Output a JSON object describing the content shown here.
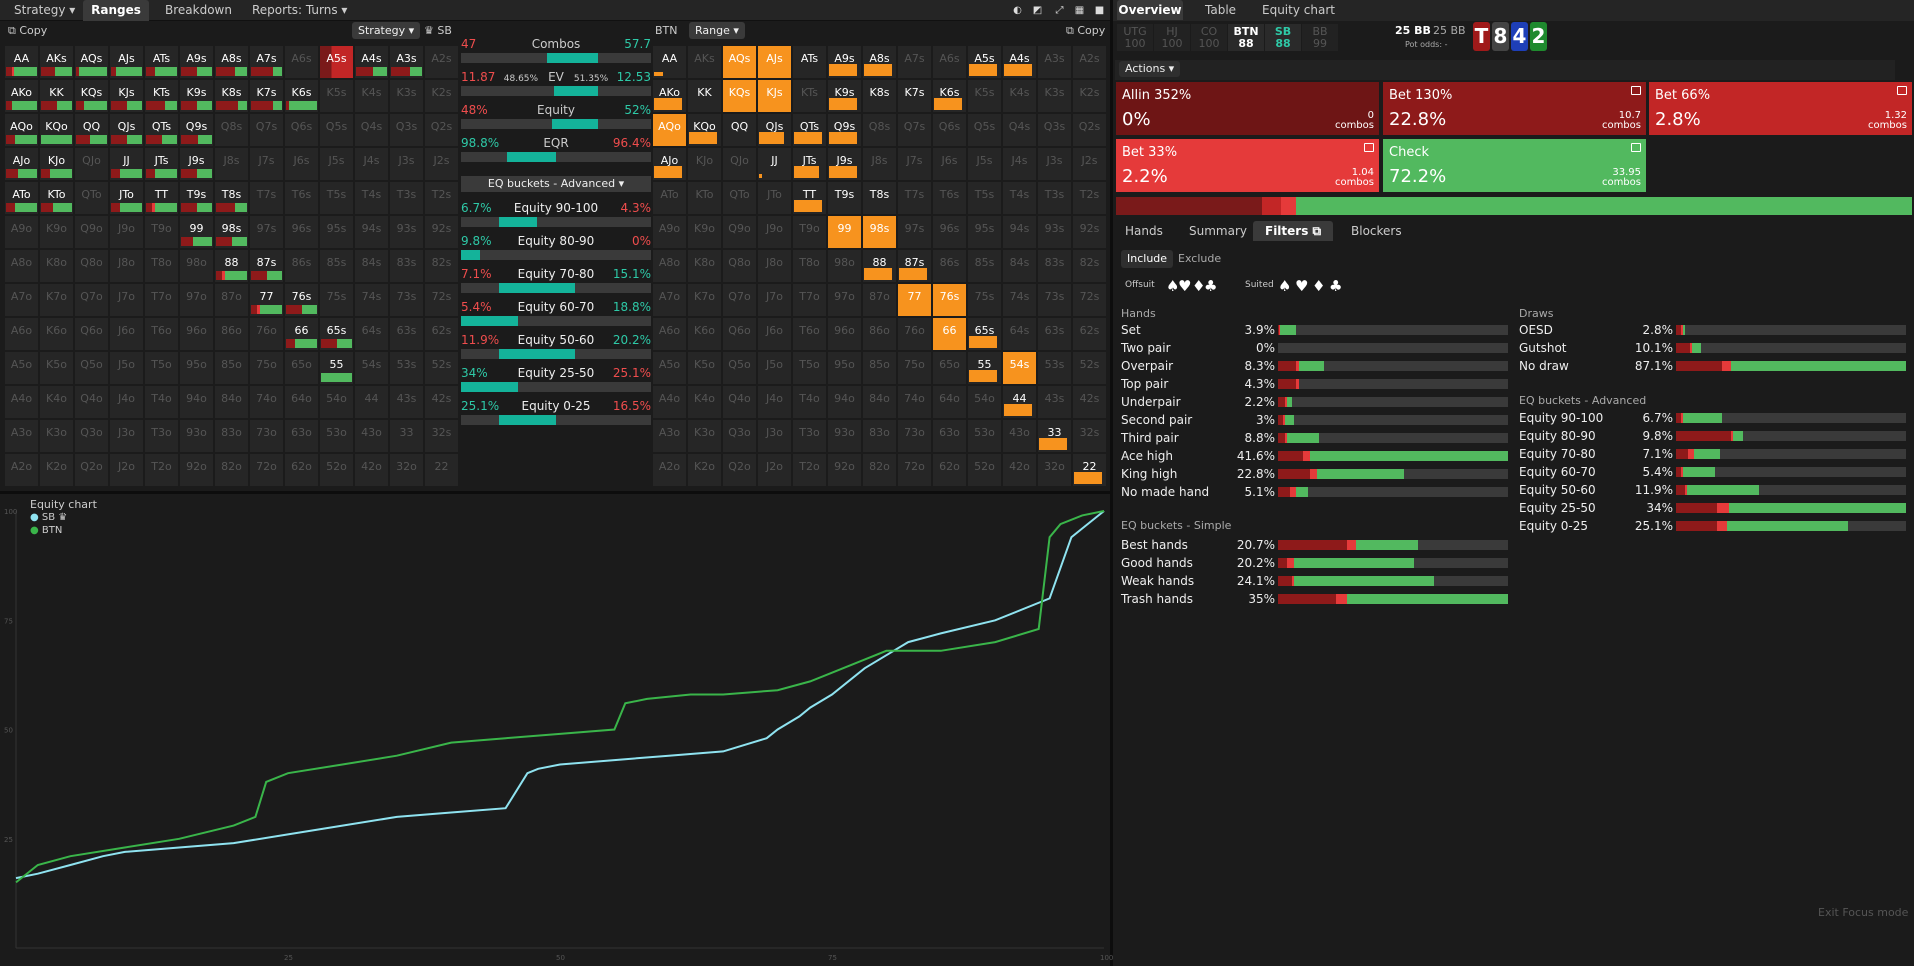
{
  "nav": {
    "tabs": [
      {
        "label": "Strategy ▾",
        "active": false
      },
      {
        "label": "Ranges",
        "active": true
      },
      {
        "label": "Breakdown",
        "active": false
      },
      {
        "label": "Reports: Turns ▾",
        "active": false
      }
    ]
  },
  "left": {
    "copy": "Copy",
    "strategy_dd": "Strategy ▾",
    "player": "♛ SB",
    "combos": {
      "label": "Combos",
      "left": "47",
      "right": "57.7",
      "fill": 0.45
    },
    "ev": {
      "label": "EV",
      "left": "11.87",
      "lp": "48.65%",
      "rp": "51.35%",
      "right": "12.53",
      "fill": 0.51
    },
    "equity": {
      "label": "Equity",
      "left": "48%",
      "right": "52%",
      "fill": 0.52
    },
    "eqr": {
      "label": "EQR",
      "left": "98.8%",
      "right": "96.4%",
      "fill": 0.5
    },
    "eq_dd": "EQ buckets - Advanced ▾",
    "buckets": [
      {
        "label": "Equity 90-100",
        "l": "6.7%",
        "r": "4.3%",
        "lc": "teal",
        "rc": "red",
        "fill": 0.2
      },
      {
        "label": "Equity 80-90",
        "l": "9.8%",
        "r": "0%",
        "lc": "teal",
        "rc": "red",
        "fill": 0.1
      },
      {
        "label": "Equity 70-80",
        "l": "7.1%",
        "r": "15.1%",
        "lc": "red",
        "rc": "teal",
        "fill": 0.4
      },
      {
        "label": "Equity 60-70",
        "l": "5.4%",
        "r": "18.8%",
        "lc": "red",
        "rc": "teal",
        "fill": 0.3
      },
      {
        "label": "Equity 50-60",
        "l": "11.9%",
        "r": "20.2%",
        "lc": "red",
        "rc": "teal",
        "fill": 0.4
      },
      {
        "label": "Equity 25-50",
        "l": "34%",
        "r": "25.1%",
        "lc": "teal",
        "rc": "red",
        "fill": 0.3
      },
      {
        "label": "Equity 0-25",
        "l": "25.1%",
        "r": "16.5%",
        "lc": "teal",
        "rc": "red",
        "fill": 0.3
      }
    ]
  },
  "right_range": {
    "player": "BTN",
    "range_dd": "Range ▾",
    "copy": "Copy"
  },
  "hands": [
    "AA",
    "AKs",
    "AQs",
    "AJs",
    "ATs",
    "A9s",
    "A8s",
    "A7s",
    "A6s",
    "A5s",
    "A4s",
    "A3s",
    "A2s",
    "AKo",
    "KK",
    "KQs",
    "KJs",
    "KTs",
    "K9s",
    "K8s",
    "K7s",
    "K6s",
    "K5s",
    "K4s",
    "K3s",
    "K2s",
    "AQo",
    "KQo",
    "QQ",
    "QJs",
    "QTs",
    "Q9s",
    "Q8s",
    "Q7s",
    "Q6s",
    "Q5s",
    "Q4s",
    "Q3s",
    "Q2s",
    "AJo",
    "KJo",
    "QJo",
    "JJ",
    "JTs",
    "J9s",
    "J8s",
    "J7s",
    "J6s",
    "J5s",
    "J4s",
    "J3s",
    "J2s",
    "ATo",
    "KTo",
    "QTo",
    "JTo",
    "TT",
    "T9s",
    "T8s",
    "T7s",
    "T6s",
    "T5s",
    "T4s",
    "T3s",
    "T2s",
    "A9o",
    "K9o",
    "Q9o",
    "J9o",
    "T9o",
    "99",
    "98s",
    "97s",
    "96s",
    "95s",
    "94s",
    "93s",
    "92s",
    "A8o",
    "K8o",
    "Q8o",
    "J8o",
    "T8o",
    "98o",
    "88",
    "87s",
    "86s",
    "85s",
    "84s",
    "83s",
    "82s",
    "A7o",
    "K7o",
    "Q7o",
    "J7o",
    "T7o",
    "97o",
    "87o",
    "77",
    "76s",
    "75s",
    "74s",
    "73s",
    "72s",
    "A6o",
    "K6o",
    "Q6o",
    "J6o",
    "T6o",
    "96o",
    "86o",
    "76o",
    "66",
    "65s",
    "64s",
    "63s",
    "62s",
    "A5o",
    "K5o",
    "Q5o",
    "J5o",
    "T5o",
    "95o",
    "85o",
    "75o",
    "65o",
    "55",
    "54s",
    "53s",
    "52s",
    "A4o",
    "K4o",
    "Q4o",
    "J4o",
    "T4o",
    "94o",
    "84o",
    "74o",
    "64o",
    "54o",
    "44",
    "43s",
    "42s",
    "A3o",
    "K3o",
    "Q3o",
    "J3o",
    "T3o",
    "93o",
    "83o",
    "73o",
    "63o",
    "53o",
    "43o",
    "33",
    "32s",
    "A2o",
    "K2o",
    "Q2o",
    "J2o",
    "T2o",
    "92o",
    "82o",
    "72o",
    "62o",
    "52o",
    "42o",
    "32o",
    "22"
  ],
  "chart": {
    "title": "Equity chart",
    "legend": [
      {
        "name": "SB ♛",
        "color": "#8fe3f0"
      },
      {
        "name": "BTN",
        "color": "#3ab54a"
      }
    ],
    "yticks": [
      "100",
      "75",
      "50",
      "25"
    ],
    "xticks": [
      "25",
      "50",
      "75",
      "100"
    ],
    "chart_data": {
      "type": "line",
      "xlim": [
        0,
        100
      ],
      "ylim": [
        0,
        100
      ],
      "series": [
        {
          "name": "SB",
          "x": [
            0,
            2,
            5,
            8,
            10,
            15,
            20,
            25,
            30,
            35,
            40,
            45,
            47,
            48,
            50,
            55,
            60,
            65,
            69,
            70,
            72,
            73,
            75,
            78,
            80,
            82,
            85,
            90,
            95,
            97,
            98,
            100
          ],
          "y": [
            16,
            17,
            19,
            21,
            22,
            23,
            24,
            26,
            28,
            30,
            31,
            32,
            40,
            41,
            42,
            43,
            44,
            45,
            48,
            50,
            53,
            55,
            58,
            64,
            67,
            70,
            72,
            75,
            80,
            94,
            96,
            100
          ]
        },
        {
          "name": "BTN",
          "x": [
            0,
            2,
            5,
            10,
            15,
            20,
            22,
            23,
            25,
            30,
            35,
            40,
            45,
            50,
            55,
            56,
            58,
            62,
            65,
            70,
            73,
            75,
            78,
            80,
            85,
            90,
            94,
            95,
            96,
            98,
            100
          ],
          "y": [
            15,
            19,
            21,
            23,
            25,
            28,
            30,
            38,
            40,
            42,
            44,
            47,
            48,
            49,
            50,
            56,
            57,
            58,
            58,
            59,
            61,
            63,
            66,
            68,
            68,
            70,
            73,
            94,
            97,
            99,
            100
          ]
        }
      ]
    }
  },
  "overview": {
    "tabs": [
      "Overview",
      "Table",
      "Equity chart"
    ],
    "positions": [
      {
        "n": "UTG",
        "v": "100"
      },
      {
        "n": "HJ",
        "v": "100"
      },
      {
        "n": "CO",
        "v": "100"
      },
      {
        "n": "BTN",
        "v": "88"
      },
      {
        "n": "SB",
        "v": "88"
      },
      {
        "n": "BB",
        "v": "99"
      }
    ],
    "pot": {
      "a": "25 BB",
      "b": "25 BB",
      "odds": "Pot odds: -"
    },
    "cards": [
      {
        "r": "T",
        "c": "#a01a1a"
      },
      {
        "r": "8",
        "c": "#444"
      },
      {
        "r": "4",
        "c": "#1e3fb8"
      },
      {
        "r": "2",
        "c": "#1f8a2e"
      }
    ],
    "actions_dd": "Actions ▾",
    "actions": [
      {
        "name": "Allin 352%",
        "pct": "0%",
        "combos": "0",
        "color": "#6e1515"
      },
      {
        "name": "Bet 130%",
        "pct": "22.8%",
        "combos": "10.7",
        "color": "#8e1a1a"
      },
      {
        "name": "Bet 66%",
        "pct": "2.8%",
        "combos": "1.32",
        "color": "#c22626"
      },
      {
        "name": "Bet 33%",
        "pct": "2.2%",
        "combos": "1.04",
        "color": "#e53a3a"
      },
      {
        "name": "Check",
        "pct": "72.2%",
        "combos": "33.95",
        "color": "#52b95f"
      }
    ],
    "combos_word": "combos",
    "subtabs": [
      "Hands",
      "Summary",
      "Filters",
      "Blockers"
    ],
    "incl": [
      "Include",
      "Exclude"
    ],
    "offsuit": "Offsuit",
    "suited": "Suited",
    "hands_title": "Hands",
    "hands_rows": [
      {
        "n": "Set",
        "v": "3.9%",
        "f": [
          0.005,
          0.005,
          0.07
        ]
      },
      {
        "n": "Two pair",
        "v": "0%",
        "f": [
          0,
          0,
          0
        ]
      },
      {
        "n": "Overpair",
        "v": "8.3%",
        "f": [
          0.08,
          0.01,
          0.11
        ]
      },
      {
        "n": "Top pair",
        "v": "4.3%",
        "f": [
          0.08,
          0.01,
          0
        ]
      },
      {
        "n": "Underpair",
        "v": "2.2%",
        "f": [
          0.03,
          0.01,
          0.02
        ]
      },
      {
        "n": "Second pair",
        "v": "3%",
        "f": [
          0.02,
          0.01,
          0.04
        ]
      },
      {
        "n": "Third pair",
        "v": "8.8%",
        "f": [
          0.03,
          0.01,
          0.14
        ]
      },
      {
        "n": "Ace high",
        "v": "41.6%",
        "f": [
          0.11,
          0.03,
          0.86
        ]
      },
      {
        "n": "King high",
        "v": "22.8%",
        "f": [
          0.14,
          0.03,
          0.38
        ]
      },
      {
        "n": "No made hand",
        "v": "5.1%",
        "f": [
          0.05,
          0.03,
          0.05
        ]
      }
    ],
    "eqs_title": "EQ buckets - Simple",
    "eqs_rows": [
      {
        "n": "Best hands",
        "v": "20.7%",
        "f": [
          0.3,
          0.04,
          0.27
        ]
      },
      {
        "n": "Good hands",
        "v": "20.2%",
        "f": [
          0.04,
          0.03,
          0.52
        ]
      },
      {
        "n": "Weak hands",
        "v": "24.1%",
        "f": [
          0.06,
          0.01,
          0.61
        ]
      },
      {
        "n": "Trash hands",
        "v": "35%",
        "f": [
          0.25,
          0.05,
          0.7
        ]
      }
    ],
    "draws_title": "Draws",
    "draws_rows": [
      {
        "n": "OESD",
        "v": "2.8%",
        "f": [
          0.02,
          0.01,
          0.01
        ]
      },
      {
        "n": "Gutshot",
        "v": "10.1%",
        "f": [
          0.06,
          0.01,
          0.04
        ]
      },
      {
        "n": "No draw",
        "v": "87.1%",
        "f": [
          0.2,
          0.04,
          0.76
        ]
      }
    ],
    "eqa_title": "EQ buckets - Advanced",
    "eqa_rows": [
      {
        "n": "Equity 90-100",
        "v": "6.7%",
        "f": [
          0.02,
          0.01,
          0.17
        ]
      },
      {
        "n": "Equity 80-90",
        "v": "9.8%",
        "f": [
          0.24,
          0.01,
          0.04
        ]
      },
      {
        "n": "Equity 70-80",
        "v": "7.1%",
        "f": [
          0.05,
          0.03,
          0.11
        ]
      },
      {
        "n": "Equity 60-70",
        "v": "5.4%",
        "f": [
          0.02,
          0.01,
          0.14
        ]
      },
      {
        "n": "Equity 50-60",
        "v": "11.9%",
        "f": [
          0.04,
          0.01,
          0.31
        ]
      },
      {
        "n": "Equity 25-50",
        "v": "34%",
        "f": [
          0.18,
          0.05,
          0.77
        ]
      },
      {
        "n": "Equity 0-25",
        "v": "25.1%",
        "f": [
          0.18,
          0.04,
          0.53
        ]
      }
    ],
    "exit": "Exit Focus mode"
  }
}
